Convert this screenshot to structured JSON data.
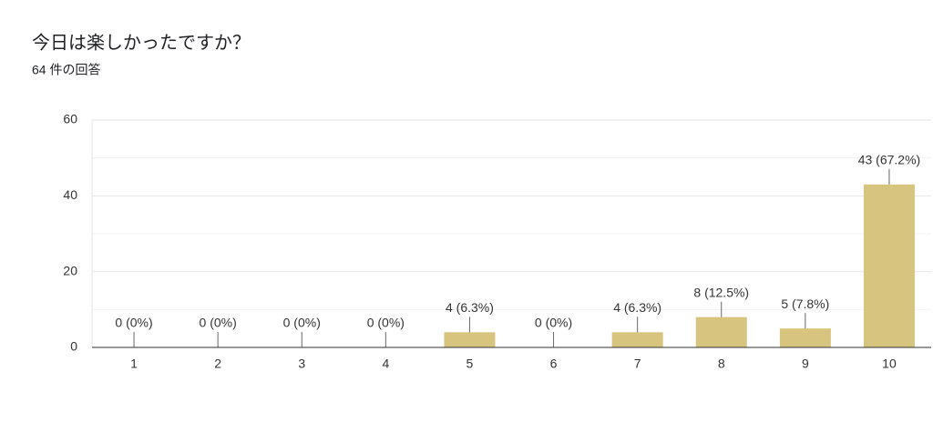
{
  "chart_data": {
    "type": "bar",
    "title": "今日は楽しかったですか？",
    "subtitle": "64 件の回答",
    "categories": [
      "1",
      "2",
      "3",
      "4",
      "5",
      "6",
      "7",
      "8",
      "9",
      "10"
    ],
    "values": [
      0,
      0,
      0,
      0,
      4,
      0,
      4,
      8,
      5,
      43
    ],
    "value_labels": [
      "0 (0%)",
      "0 (0%)",
      "0 (0%)",
      "0 (0%)",
      "4 (6.3%)",
      "0 (0%)",
      "4 (6.3%)",
      "8 (12.5%)",
      "5 (7.8%)",
      "43 (67.2%)"
    ],
    "color": "#d7c47f",
    "ylim": [
      0,
      60
    ],
    "yticks": [
      0,
      20,
      40,
      60
    ],
    "minor_yticks": [
      10,
      30,
      50
    ],
    "grid": true
  }
}
